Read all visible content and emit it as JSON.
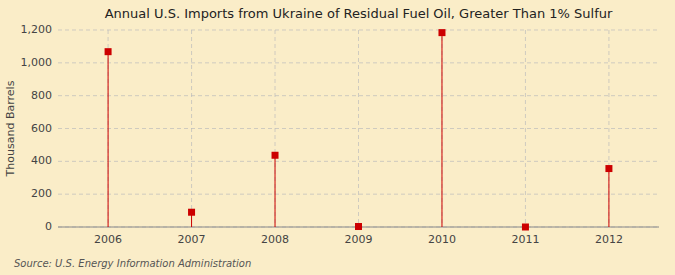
{
  "chart_data": {
    "type": "stem",
    "title": "Annual U.S. Imports from Ukraine of Residual Fuel Oil, Greater Than 1% Sulfur",
    "ylabel": "Thousand Barrels",
    "annotations": [
      "Source: U.S. Energy Information Administration"
    ],
    "x": [
      2006,
      2007,
      2008,
      2009,
      2010,
      2011,
      2012
    ],
    "values": [
      1068,
      90,
      437,
      3,
      1184,
      0,
      356
    ],
    "color": "#cc0000",
    "marker": "square",
    "xlim": [
      2005.4,
      2012.6
    ],
    "ylim": [
      0,
      1200
    ],
    "xticks": [
      2006,
      2007,
      2008,
      2009,
      2010,
      2011,
      2012
    ],
    "yticks": [
      0,
      200,
      400,
      600,
      800,
      {
        "value": 1000,
        "label": "1,000"
      },
      {
        "value": 1200,
        "label": "1,200"
      }
    ],
    "grid": true
  }
}
